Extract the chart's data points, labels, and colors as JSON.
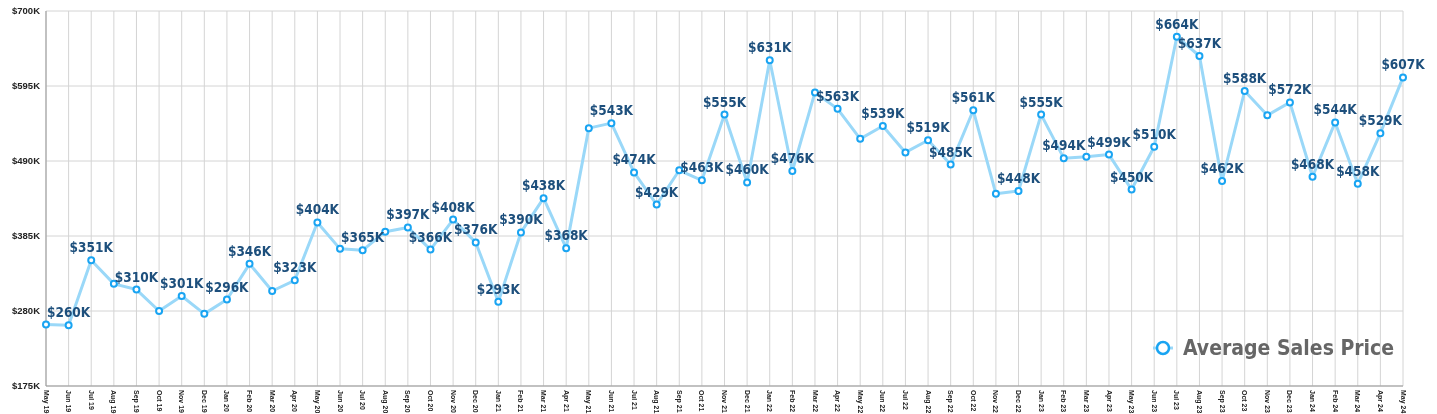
{
  "chart_data": {
    "type": "line",
    "categories": [
      "May 19",
      "Jun 19",
      "Jul 19",
      "Aug 19",
      "Sep 19",
      "Oct 19",
      "Nov 19",
      "Dec 19",
      "Jan 20",
      "Feb 20",
      "Mar 20",
      "Apr 20",
      "May 20",
      "Jun 20",
      "Jul 20",
      "Aug 20",
      "Sep 20",
      "Oct 20",
      "Nov 20",
      "Dec 20",
      "Jan 21",
      "Feb 21",
      "Mar 21",
      "Apr 21",
      "May 21",
      "Jun 21",
      "Jul 21",
      "Aug 21",
      "Sep 21",
      "Oct 21",
      "Nov 21",
      "Dec 21",
      "Jan 22",
      "Feb 22",
      "Mar 22",
      "Apr 22",
      "May 22",
      "Jun 22",
      "Jul 22",
      "Aug 22",
      "Sep 22",
      "Oct 22",
      "Nov 22",
      "Dec 22",
      "Jan 23",
      "Feb 23",
      "Mar 23",
      "Apr 23",
      "May 23",
      "Jun 23",
      "Jul 23",
      "Aug 23",
      "Sep 23",
      "Oct 23",
      "Nov 23",
      "Dec 23",
      "Jan 24",
      "Feb 24",
      "Mar 24",
      "Apr 24",
      "May 24"
    ],
    "series": [
      {
        "name": "Average Sales Price",
        "color": "#9ad8f8",
        "values": [
          261,
          260,
          351,
          318,
          310,
          280,
          301,
          276,
          296,
          346,
          308,
          323,
          404,
          367,
          365,
          391,
          397,
          366,
          408,
          376,
          293,
          390,
          438,
          368,
          536,
          543,
          474,
          429,
          477,
          463,
          555,
          460,
          631,
          476,
          586,
          563,
          521,
          539,
          502,
          519,
          485,
          561,
          444,
          448,
          555,
          494,
          496,
          499,
          450,
          510,
          664,
          637,
          462,
          588,
          554,
          572,
          468,
          544,
          458,
          529,
          607
        ],
        "value_labels": [
          null,
          "$260K",
          "$351K",
          null,
          "$310K",
          null,
          "$301K",
          null,
          "$296K",
          "$346K",
          null,
          "$323K",
          "$404K",
          null,
          "$365K",
          null,
          "$397K",
          "$366K",
          "$408K",
          "$376K",
          "$293K",
          "$390K",
          "$438K",
          "$368K",
          null,
          "$543K",
          "$474K",
          "$429K",
          null,
          "$463K",
          "$555K",
          "$460K",
          "$631K",
          "$476K",
          null,
          "$563K",
          null,
          "$539K",
          null,
          "$519K",
          "$485K",
          "$561K",
          null,
          "$448K",
          "$555K",
          "$494K",
          null,
          "$499K",
          "$450K",
          "$510K",
          "$664K",
          "$637K",
          "$462K",
          "$588K",
          null,
          "$572K",
          "$468K",
          "$544K",
          "$458K",
          "$529K",
          "$607K"
        ]
      }
    ],
    "ylim": [
      175,
      700
    ],
    "yticks": [
      {
        "value": 175,
        "label": "$175K"
      },
      {
        "value": 280,
        "label": "$280K"
      },
      {
        "value": 385,
        "label": "$385K"
      },
      {
        "value": 490,
        "label": "$490K"
      },
      {
        "value": 595,
        "label": "$595K"
      },
      {
        "value": 700,
        "label": "$700K"
      }
    ],
    "grid": true,
    "legend": "bottom right",
    "marker": "circle",
    "line_style": "solid"
  }
}
